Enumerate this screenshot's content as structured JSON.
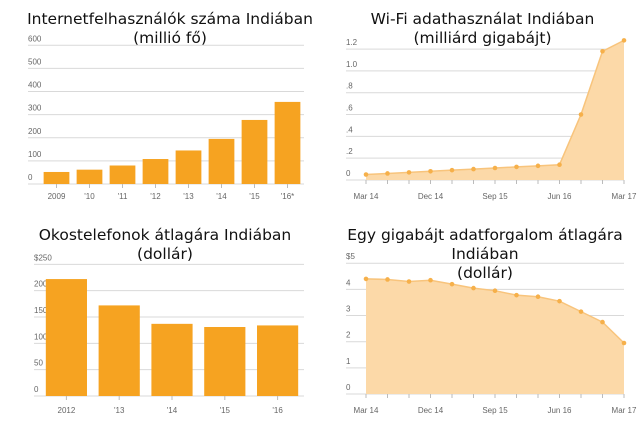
{
  "chart_data": [
    {
      "type": "bar",
      "title": "Internetfelhasználók száma Indiában",
      "subtitle": "(millió fő)",
      "categories": [
        "2009",
        "'10",
        "'11",
        "'12",
        "'13",
        "'14",
        "'15",
        "'16*"
      ],
      "values": [
        52,
        62,
        80,
        108,
        145,
        195,
        277,
        355
      ],
      "yticks": [
        0,
        100,
        200,
        300,
        400,
        500,
        600
      ],
      "ylim": [
        0,
        640
      ],
      "grid": true,
      "colors": {
        "bar": "#f6a321",
        "grid": "#d9d9d9",
        "text": "#666666"
      }
    },
    {
      "type": "area",
      "title": "Wi-Fi adathasználat Indiában",
      "subtitle": "(milliárd gigabájt)",
      "x": [
        "Mar 14",
        "Jun 14",
        "Sep 14",
        "Dec 14",
        "Mar 15",
        "Jun 15",
        "Sep 15",
        "Dec 15",
        "Mar 16",
        "Jun 16",
        "Sep 16",
        "Dec 16",
        "Mar 17"
      ],
      "xtick_labels": [
        "Mar 14",
        "Dec 14",
        "Sep 15",
        "Jun 16",
        "Mar 17"
      ],
      "xtick_index": [
        0,
        3,
        6,
        9,
        12
      ],
      "values": [
        0.05,
        0.06,
        0.07,
        0.08,
        0.09,
        0.1,
        0.11,
        0.12,
        0.13,
        0.14,
        0.6,
        1.18,
        1.28
      ],
      "yticks": [
        0,
        0.2,
        0.4,
        0.6,
        0.8,
        1.0,
        1.2
      ],
      "ytick_labels": [
        "0",
        ".2",
        ".4",
        ".6",
        ".8",
        "1.0",
        "1.2"
      ],
      "ylim": [
        0,
        1.32
      ],
      "grid": true,
      "colors": {
        "fill": "#fcd9a8",
        "line": "#f8c47c",
        "point": "#f6b04a",
        "grid": "#d9d9d9"
      }
    },
    {
      "type": "bar",
      "title": "Okostelefonok átlagára Indiában",
      "subtitle": "(dollár)",
      "categories": [
        "2012",
        "'13",
        "'14",
        "'15",
        "'16"
      ],
      "values": [
        222,
        172,
        137,
        131,
        134
      ],
      "yticks": [
        0,
        50,
        100,
        150,
        200,
        250
      ],
      "ytick_labels": [
        "0",
        "50",
        "100",
        "150",
        "200",
        "$250"
      ],
      "ylim": [
        0,
        262
      ],
      "grid": true,
      "colors": {
        "bar": "#f6a321",
        "grid": "#d9d9d9",
        "text": "#666666"
      }
    },
    {
      "type": "area",
      "title": "Egy gigabájt adatforgalom átlagára Indiában",
      "subtitle": "(dollár)",
      "x": [
        "Mar 14",
        "Jun 14",
        "Sep 14",
        "Dec 14",
        "Mar 15",
        "Jun 15",
        "Sep 15",
        "Dec 15",
        "Mar 16",
        "Jun 16",
        "Sep 16",
        "Dec 16",
        "Mar 17"
      ],
      "xtick_labels": [
        "Mar 14",
        "Dec 14",
        "Sep 15",
        "Jun 16",
        "Mar 17"
      ],
      "xtick_index": [
        0,
        3,
        6,
        9,
        12
      ],
      "values": [
        4.4,
        4.38,
        4.3,
        4.35,
        4.2,
        4.05,
        3.95,
        3.78,
        3.72,
        3.55,
        3.15,
        2.75,
        1.95
      ],
      "yticks": [
        0,
        1,
        2,
        3,
        4,
        5
      ],
      "ytick_labels": [
        "0",
        "1",
        "2",
        "3",
        "4",
        "$5"
      ],
      "ylim": [
        0,
        5.2
      ],
      "grid": true,
      "colors": {
        "fill": "#fcd9a8",
        "line": "#f8c47c",
        "point": "#f6b04a",
        "grid": "#d9d9d9"
      }
    }
  ]
}
